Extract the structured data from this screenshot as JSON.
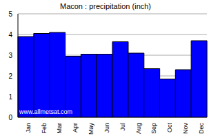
{
  "chart_data": {
    "type": "bar",
    "title": "Macon : precipitation (inch)",
    "annotations": [
      "www.allmetsat.com"
    ],
    "categories": [
      "Jan",
      "Feb",
      "Mar",
      "Apr",
      "May",
      "Jun",
      "Jul",
      "Aug",
      "Sep",
      "Oct",
      "Nov",
      "Dec"
    ],
    "values": [
      3.9,
      4.05,
      4.1,
      2.95,
      3.05,
      3.05,
      3.65,
      3.1,
      2.35,
      1.85,
      2.3,
      3.7
    ],
    "color": "#0000ff",
    "ylim": [
      0,
      5
    ],
    "yticks": [
      0,
      1,
      2,
      3,
      4,
      5
    ],
    "grid": true
  }
}
